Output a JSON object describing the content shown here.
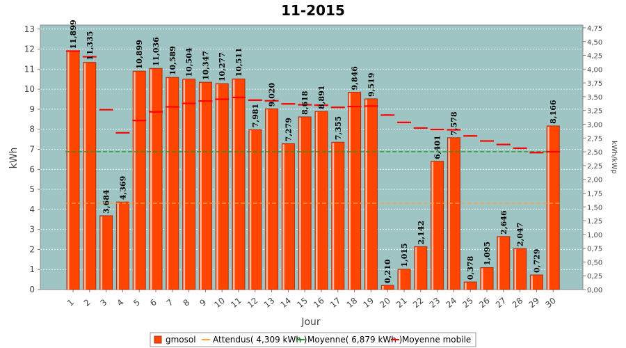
{
  "chart_data": {
    "type": "bar",
    "title": "11-2015",
    "xlabel": "Jour",
    "ylabel": "kWh",
    "y2label": "kWh/kWp",
    "ylim": [
      0,
      13.2
    ],
    "y2lim": [
      0,
      4.8
    ],
    "yticks": [
      "0",
      "1",
      "2",
      "3",
      "4",
      "5",
      "6",
      "7",
      "8",
      "9",
      "10",
      "11",
      "12",
      "13"
    ],
    "y2ticks": [
      "0,00",
      "0,25",
      "0,50",
      "0,75",
      "1,00",
      "1,25",
      "1,50",
      "1,75",
      "2,00",
      "2,25",
      "2,50",
      "2,75",
      "3,00",
      "3,25",
      "3,50",
      "3,75",
      "4,00",
      "4,25",
      "4,50",
      "4,75"
    ],
    "categories": [
      "1",
      "2",
      "3",
      "4",
      "5",
      "6",
      "7",
      "8",
      "9",
      "10",
      "11",
      "12",
      "13",
      "14",
      "15",
      "16",
      "17",
      "18",
      "19",
      "20",
      "21",
      "22",
      "23",
      "24",
      "25",
      "26",
      "27",
      "28",
      "29",
      "30"
    ],
    "values": [
      11.899,
      11.335,
      3.684,
      4.369,
      10.899,
      11.036,
      10.589,
      10.504,
      10.347,
      10.277,
      10.511,
      7.981,
      9.02,
      7.279,
      8.618,
      8.891,
      7.355,
      9.846,
      9.519,
      0.21,
      1.015,
      2.142,
      6.401,
      7.578,
      0.378,
      1.095,
      2.646,
      2.047,
      0.729,
      8.166
    ],
    "value_labels": [
      "11,899",
      "11,335",
      "3,684",
      "4,369",
      "10,899",
      "11,036",
      "10,589",
      "10,504",
      "10,347",
      "10,277",
      "10,511",
      "7,981",
      "9,020",
      "7,279",
      "8,618",
      "8,891",
      "7,355",
      "9,846",
      "9,519",
      "0,210",
      "1,015",
      "2,142",
      "6,401",
      "7,578",
      "0,378",
      "1,095",
      "2,646",
      "2,047",
      "0,729",
      "8,166"
    ],
    "moving_average": [
      11.899,
      11.617,
      8.973,
      7.822,
      8.437,
      8.87,
      9.116,
      9.29,
      9.408,
      9.495,
      9.587,
      9.453,
      9.42,
      9.267,
      9.223,
      9.202,
      9.093,
      9.134,
      9.155,
      8.708,
      8.342,
      8.06,
      7.988,
      7.971,
      7.667,
      7.414,
      7.237,
      7.052,
      6.834,
      6.879
    ],
    "attendus": 4.309,
    "moyenne": 6.879,
    "grid": true,
    "legend_position": "bottom",
    "legend": [
      {
        "label": "gmosol",
        "color": "#ff4500",
        "kind": "box"
      },
      {
        "label": "Attendus( 4,309 kWh )",
        "color": "#f7a13c",
        "kind": "line"
      },
      {
        "label": "Moyenne( 6,879 kWh )",
        "color": "#1b9a1b",
        "kind": "line"
      },
      {
        "label": "Moyenne mobile",
        "color": "#ff0000",
        "kind": "line"
      }
    ],
    "colors": {
      "bar": "#ff4500",
      "bar_edge": "#a83010",
      "bar_light": "#ffbba6",
      "plot_bg": "#9fc4c4",
      "attendus": "#f7a13c",
      "moyenne": "#1b9a1b",
      "moving_average": "#ff0000"
    }
  }
}
